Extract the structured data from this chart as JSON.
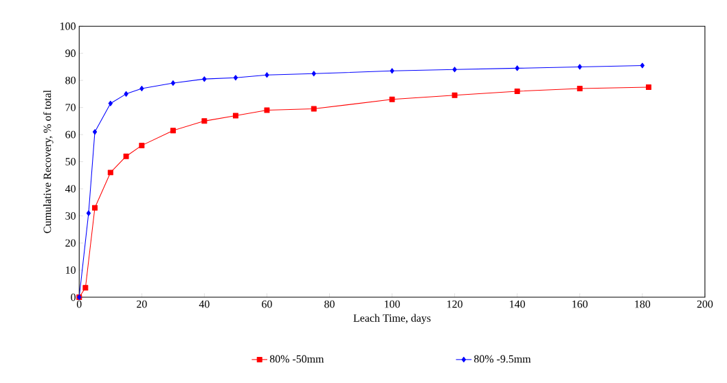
{
  "chart_data": {
    "type": "line",
    "xlabel": "Leach Time, days",
    "ylabel": "Cumulative Recovery, % of total",
    "xlim": [
      0,
      200
    ],
    "ylim": [
      0,
      100
    ],
    "xticks": [
      0,
      20,
      40,
      60,
      80,
      100,
      120,
      140,
      160,
      180,
      200
    ],
    "yticks": [
      0,
      10,
      20,
      30,
      40,
      50,
      60,
      70,
      80,
      90,
      100
    ],
    "grid": false,
    "legend": "bottom",
    "series": [
      {
        "name": "80% -50mm",
        "color": "#ff0000",
        "marker": "square",
        "x": [
          0,
          2,
          5,
          10,
          15,
          20,
          30,
          40,
          50,
          60,
          75,
          100,
          120,
          140,
          160,
          182
        ],
        "values": [
          0,
          3.5,
          33,
          46,
          52,
          56,
          61.5,
          65,
          67,
          69,
          69.5,
          73,
          74.5,
          76,
          77,
          77.5
        ]
      },
      {
        "name": "80% -9.5mm",
        "color": "#0000ff",
        "marker": "diamond",
        "x": [
          0,
          3,
          5,
          10,
          15,
          20,
          30,
          40,
          50,
          60,
          75,
          100,
          120,
          140,
          160,
          180
        ],
        "values": [
          0,
          31,
          61,
          71.5,
          75,
          77,
          79,
          80.5,
          81,
          82,
          82.5,
          83.5,
          84,
          84.5,
          85,
          85.5
        ]
      }
    ]
  }
}
